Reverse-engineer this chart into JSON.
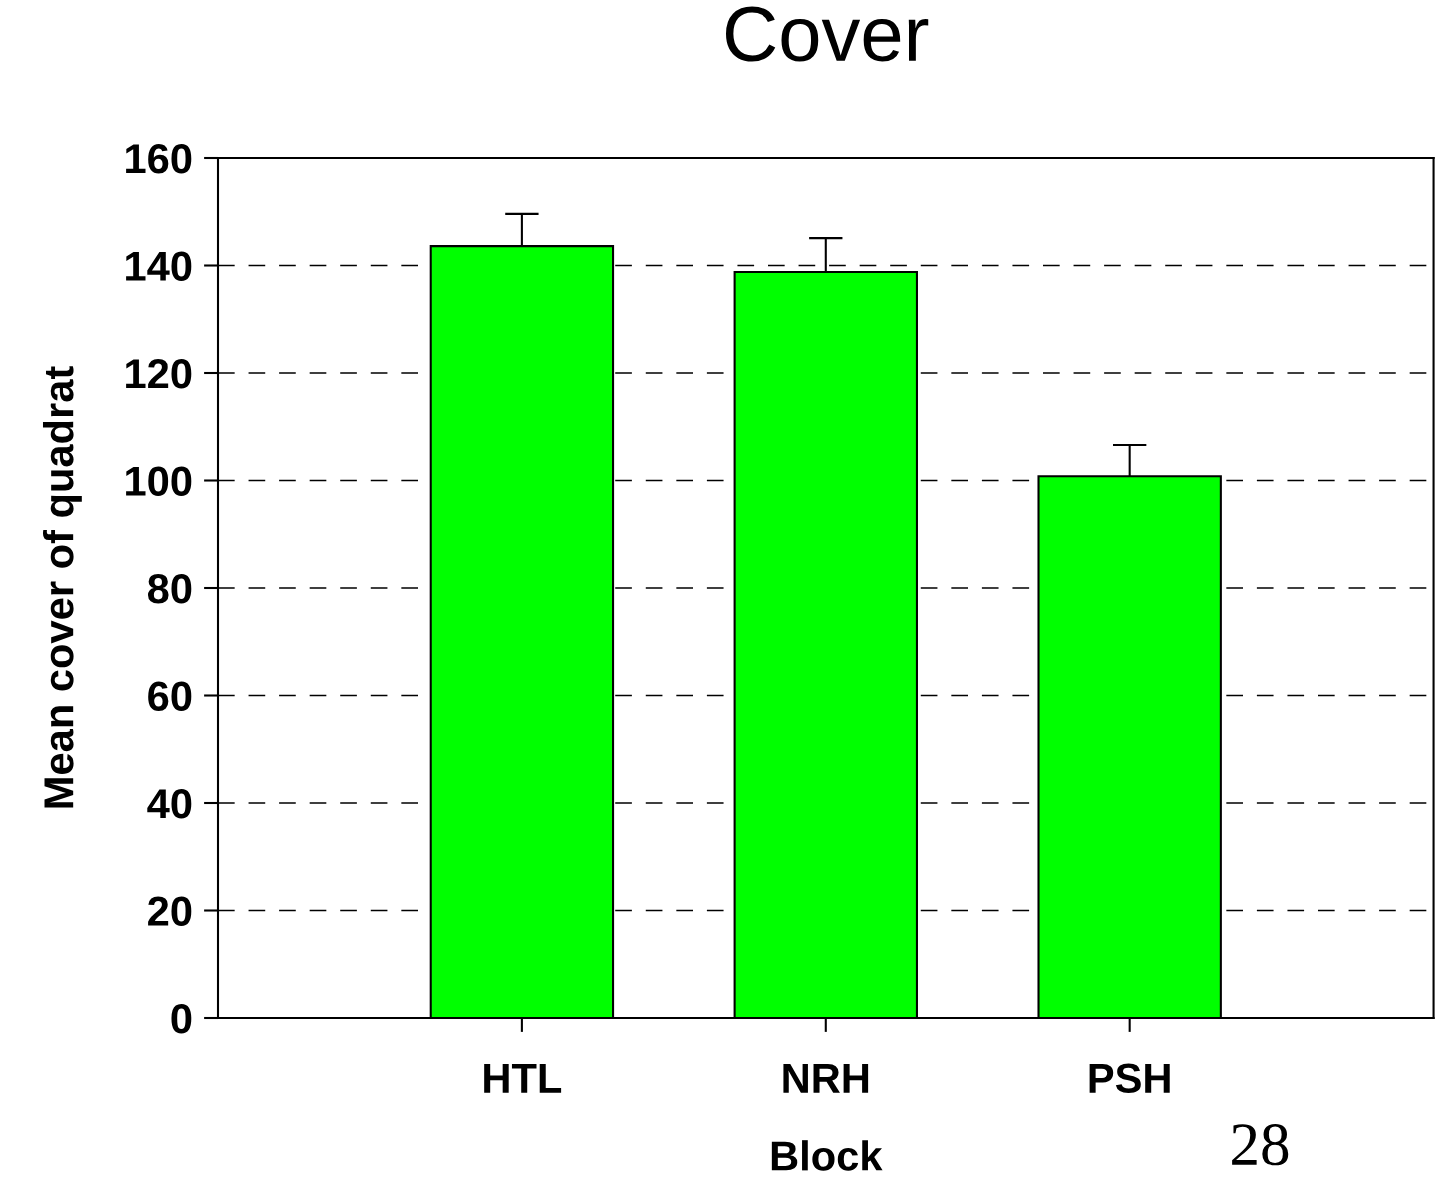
{
  "chart_data": {
    "type": "bar",
    "title": "Cover",
    "xlabel": "Block",
    "ylabel": "Mean cover of quadrat",
    "categories": [
      "HTL",
      "NRH",
      "PSH"
    ],
    "values": [
      143.6,
      138.8,
      100.8
    ],
    "errors": [
      6.0,
      6.3,
      5.8
    ],
    "color": "#00ff00",
    "ylim": [
      0,
      160
    ],
    "yticks": [
      0,
      20,
      40,
      60,
      80,
      100,
      120,
      140,
      160
    ],
    "grid": "y",
    "line_style": "dashed",
    "annotations": [
      "28"
    ]
  }
}
